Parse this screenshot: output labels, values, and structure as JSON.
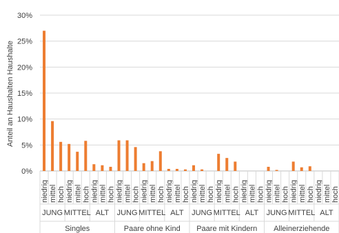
{
  "chart_data": {
    "type": "bar",
    "ylabel": "Anteil an Haushalten Haushalte",
    "ylim": [
      0,
      30
    ],
    "yticks": [
      "0%",
      "5%",
      "10%",
      "15%",
      "20%",
      "25%",
      "30%"
    ],
    "grid": true,
    "bar_color": "#ED7D31",
    "groups": [
      {
        "label": "Singles",
        "subgroups": [
          {
            "label": "JUNG",
            "categories": [
              "niedrig",
              "mittel",
              "hoch"
            ],
            "values": [
              27.0,
              9.6,
              5.6
            ]
          },
          {
            "label": "MITTEL",
            "categories": [
              "niedrig",
              "mittel",
              "hoch"
            ],
            "values": [
              5.2,
              3.7,
              5.8
            ]
          },
          {
            "label": "ALT",
            "categories": [
              "niedrig",
              "mittel",
              "hoch"
            ],
            "values": [
              1.3,
              1.1,
              0.8
            ]
          }
        ]
      },
      {
        "label": "Paare ohne Kind",
        "subgroups": [
          {
            "label": "JUNG",
            "categories": [
              "niedrig",
              "mittel",
              "hoch"
            ],
            "values": [
              5.9,
              5.9,
              4.6
            ]
          },
          {
            "label": "MITTEL",
            "categories": [
              "niedrig",
              "mittel",
              "hoch"
            ],
            "values": [
              1.5,
              1.9,
              3.8
            ]
          },
          {
            "label": "ALT",
            "categories": [
              "niedrig",
              "mittel",
              "hoch"
            ],
            "values": [
              0.4,
              0.4,
              0.3
            ]
          }
        ]
      },
      {
        "label": "Paare mit Kindern",
        "subgroups": [
          {
            "label": "JUNG",
            "categories": [
              "niedrig",
              "mittel",
              "hoch"
            ],
            "values": [
              1.1,
              0.3,
              0
            ]
          },
          {
            "label": "MITTEL",
            "categories": [
              "niedrig",
              "mittel",
              "hoch"
            ],
            "values": [
              3.3,
              2.5,
              1.8
            ]
          },
          {
            "label": "ALT",
            "categories": [
              "niedrig",
              "mittel",
              "hoch"
            ],
            "values": [
              0,
              0,
              0
            ]
          }
        ]
      },
      {
        "label": "Alleinerziehende",
        "subgroups": [
          {
            "label": "JUNG",
            "categories": [
              "niedrig",
              "mittel",
              "hoch"
            ],
            "values": [
              0.8,
              0.2,
              0
            ]
          },
          {
            "label": "MITTEL",
            "categories": [
              "niedrig",
              "mittel",
              "hoch"
            ],
            "values": [
              1.8,
              0.7,
              0.9
            ]
          },
          {
            "label": "ALT",
            "categories": [
              "niedrig",
              "mittel",
              "hoch"
            ],
            "values": [
              0,
              0,
              0
            ]
          }
        ]
      }
    ]
  }
}
